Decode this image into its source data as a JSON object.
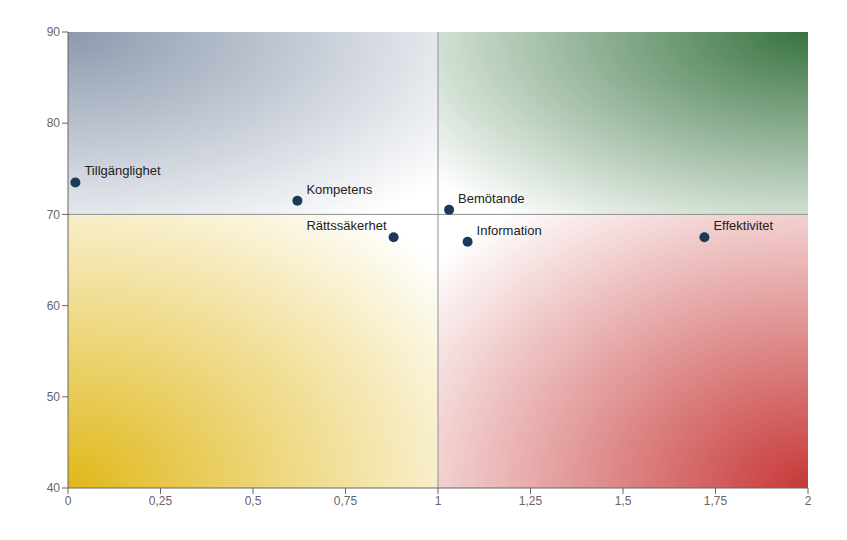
{
  "chart_data": {
    "type": "scatter",
    "x": [
      0.02,
      0.62,
      0.88,
      1.03,
      1.08,
      1.72
    ],
    "values": [
      73.5,
      71.5,
      67.5,
      70.5,
      67.0,
      67.5
    ],
    "labels": [
      "Tillgänglighet",
      "Kompetens",
      "Rättssäkerhet",
      "Bemötande",
      "Information",
      "Effektivitet"
    ],
    "color": "#1a3a5c",
    "xlim": [
      0,
      2
    ],
    "ylim": [
      40,
      90
    ],
    "xticks": [
      0,
      {
        "value": 0.25,
        "label": "0,25"
      },
      {
        "value": 0.5,
        "label": "0,5"
      },
      {
        "value": 0.75,
        "label": "0,75"
      },
      1,
      {
        "value": 1.25,
        "label": "1,25"
      },
      {
        "value": 1.5,
        "label": "1,5"
      },
      {
        "value": 1.75,
        "label": "1,75"
      },
      2
    ],
    "yticks": [
      40,
      50,
      60,
      70,
      80,
      90
    ],
    "grid": false,
    "dividers": {
      "x": 1.0,
      "y": 70.0
    },
    "quadrant_colors": {
      "top_left": "#8c99ad",
      "top_right": "#387340",
      "bottom_left": "#e0b81a",
      "bottom_right": "#c73838"
    }
  }
}
